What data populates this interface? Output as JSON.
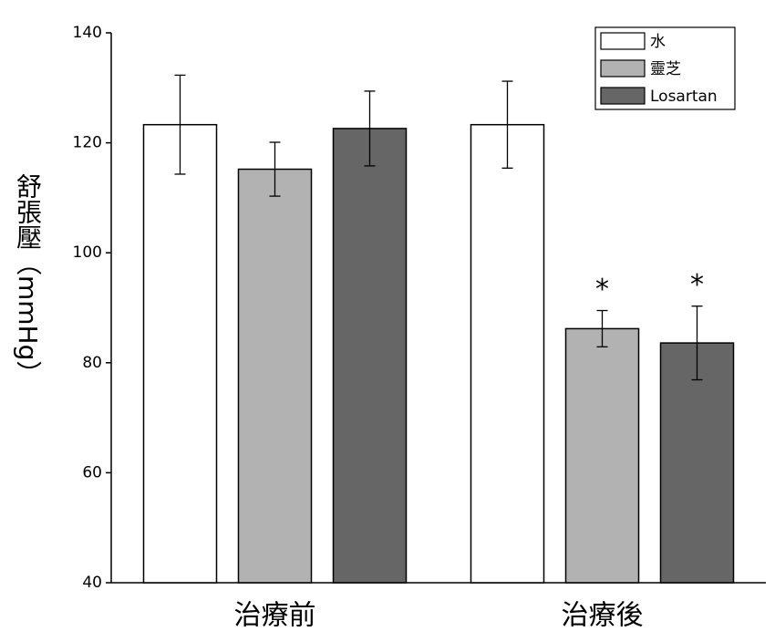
{
  "chart_data": {
    "type": "bar",
    "y_label": "舒張壓（mmHg）",
    "categories": [
      "治療前",
      "治療後"
    ],
    "series": [
      {
        "name": "水",
        "color": "#ffffff",
        "values": [
          123.3,
          123.3
        ],
        "errors": [
          9.0,
          7.9
        ],
        "significance": [
          null,
          null
        ]
      },
      {
        "name": "靈芝",
        "color": "#b2b2b2",
        "values": [
          115.2,
          86.2
        ],
        "errors": [
          4.9,
          3.3
        ],
        "significance": [
          null,
          "*"
        ]
      },
      {
        "name": "Losartan",
        "color": "#666666",
        "values": [
          122.6,
          83.6
        ],
        "errors": [
          6.8,
          6.7
        ],
        "significance": [
          null,
          "*"
        ]
      }
    ],
    "ylim": [
      40,
      140
    ],
    "yticks": [
      40,
      60,
      80,
      100,
      120,
      140
    ],
    "legend": "upper right"
  }
}
